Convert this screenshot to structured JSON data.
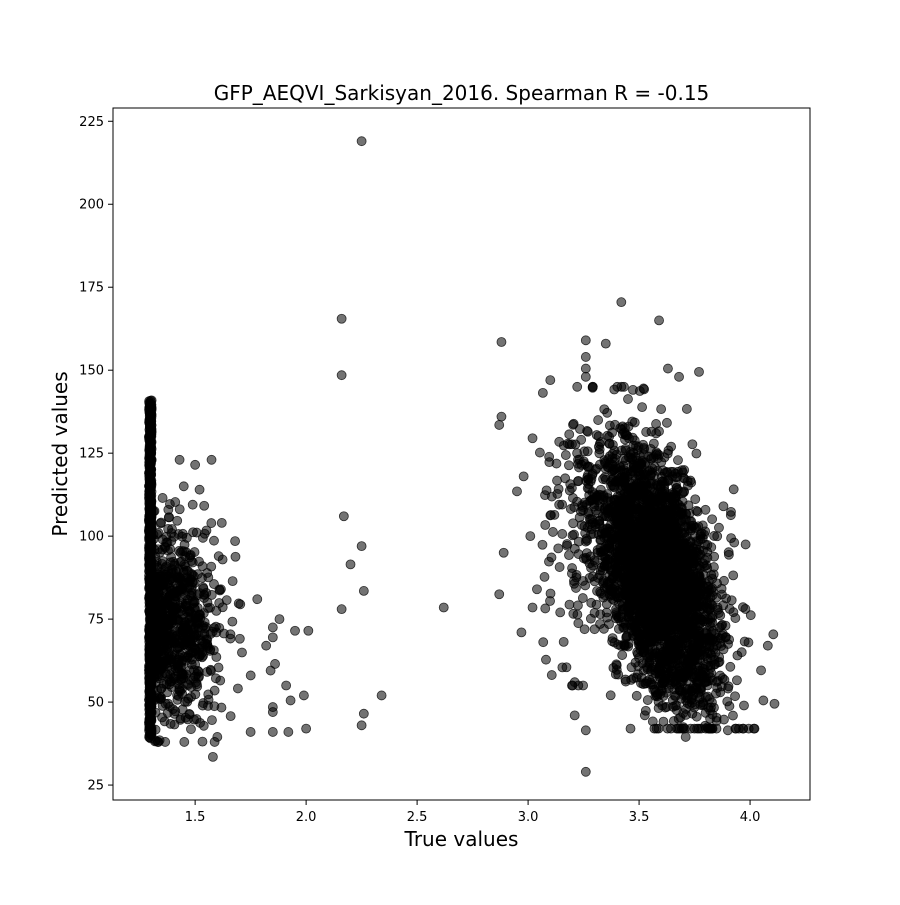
{
  "chart_data": {
    "type": "scatter",
    "title": "GFP_AEQVI_Sarkisyan_2016. Spearman R = -0.15",
    "xlabel": "True values",
    "ylabel": "Predicted values",
    "xlim": [
      1.13,
      4.27
    ],
    "ylim": [
      20.5,
      229
    ],
    "xticks": [
      1.5,
      2.0,
      2.5,
      3.0,
      3.5,
      4.0
    ],
    "xtick_labels": [
      "1.5",
      "2.0",
      "2.5",
      "3.0",
      "3.5",
      "4.0"
    ],
    "yticks": [
      25,
      50,
      75,
      100,
      125,
      150,
      175,
      200,
      225
    ],
    "ytick_labels": [
      "25",
      "50",
      "75",
      "100",
      "125",
      "150",
      "175",
      "200",
      "225"
    ],
    "grid": false,
    "marker_color": "#000000",
    "marker_alpha": 0.55,
    "points": [
      [
        2.25,
        219
      ],
      [
        2.16,
        165.5
      ],
      [
        2.16,
        148.5
      ],
      [
        2.17,
        106
      ],
      [
        2.25,
        97
      ],
      [
        2.2,
        91.5
      ],
      [
        2.26,
        83.5
      ],
      [
        2.16,
        78
      ],
      [
        2.34,
        52
      ],
      [
        2.26,
        46.5
      ],
      [
        2.25,
        43
      ],
      [
        2.62,
        78.5
      ],
      [
        2.88,
        158.5
      ],
      [
        2.88,
        136
      ],
      [
        2.87,
        133.5
      ],
      [
        2.89,
        95
      ],
      [
        2.87,
        82.5
      ],
      [
        2.97,
        71
      ],
      [
        3.42,
        170.5
      ],
      [
        3.59,
        165
      ],
      [
        3.26,
        29
      ],
      [
        3.26,
        41.5
      ],
      [
        3.21,
        46
      ],
      [
        3.21,
        56
      ],
      [
        1.58,
        33.5
      ],
      [
        1.5,
        121.5
      ],
      [
        1.43,
        123
      ],
      [
        1.52,
        114
      ],
      [
        1.62,
        104
      ],
      [
        1.68,
        98.5
      ],
      [
        1.78,
        81
      ],
      [
        1.82,
        67
      ],
      [
        1.85,
        72.5
      ],
      [
        1.85,
        69.5
      ],
      [
        1.88,
        75
      ],
      [
        1.95,
        71.5
      ],
      [
        2.01,
        71.5
      ],
      [
        1.86,
        61.5
      ],
      [
        1.84,
        59.5
      ],
      [
        1.91,
        55
      ],
      [
        1.99,
        52
      ],
      [
        1.93,
        50.5
      ],
      [
        1.85,
        48.5
      ],
      [
        1.85,
        47
      ],
      [
        1.85,
        41
      ],
      [
        1.92,
        41
      ],
      [
        2.0,
        42
      ],
      [
        1.75,
        41
      ],
      [
        1.6,
        39.5
      ],
      [
        1.34,
        38.5
      ],
      [
        3.35,
        158
      ],
      [
        3.26,
        159
      ],
      [
        3.26,
        154
      ],
      [
        3.26,
        150.5
      ],
      [
        3.26,
        148
      ],
      [
        3.1,
        147
      ],
      [
        3.52,
        144.5
      ],
      [
        3.63,
        150.5
      ],
      [
        3.68,
        148
      ],
      [
        3.77,
        149.5
      ],
      [
        3.88,
        109
      ],
      [
        3.98,
        97.5
      ],
      [
        4.08,
        67
      ],
      [
        4.11,
        49.5
      ],
      [
        4.06,
        50.5
      ],
      [
        4.02,
        42
      ],
      [
        3.82,
        45
      ],
      [
        3.74,
        46.5
      ],
      [
        3.71,
        39.5
      ],
      [
        3.9,
        41.5
      ],
      [
        3.02,
        129.5
      ],
      [
        2.98,
        118
      ],
      [
        3.01,
        100
      ],
      [
        3.04,
        84
      ],
      [
        3.02,
        78.5
      ],
      [
        2.95,
        113.5
      ]
    ]
  }
}
